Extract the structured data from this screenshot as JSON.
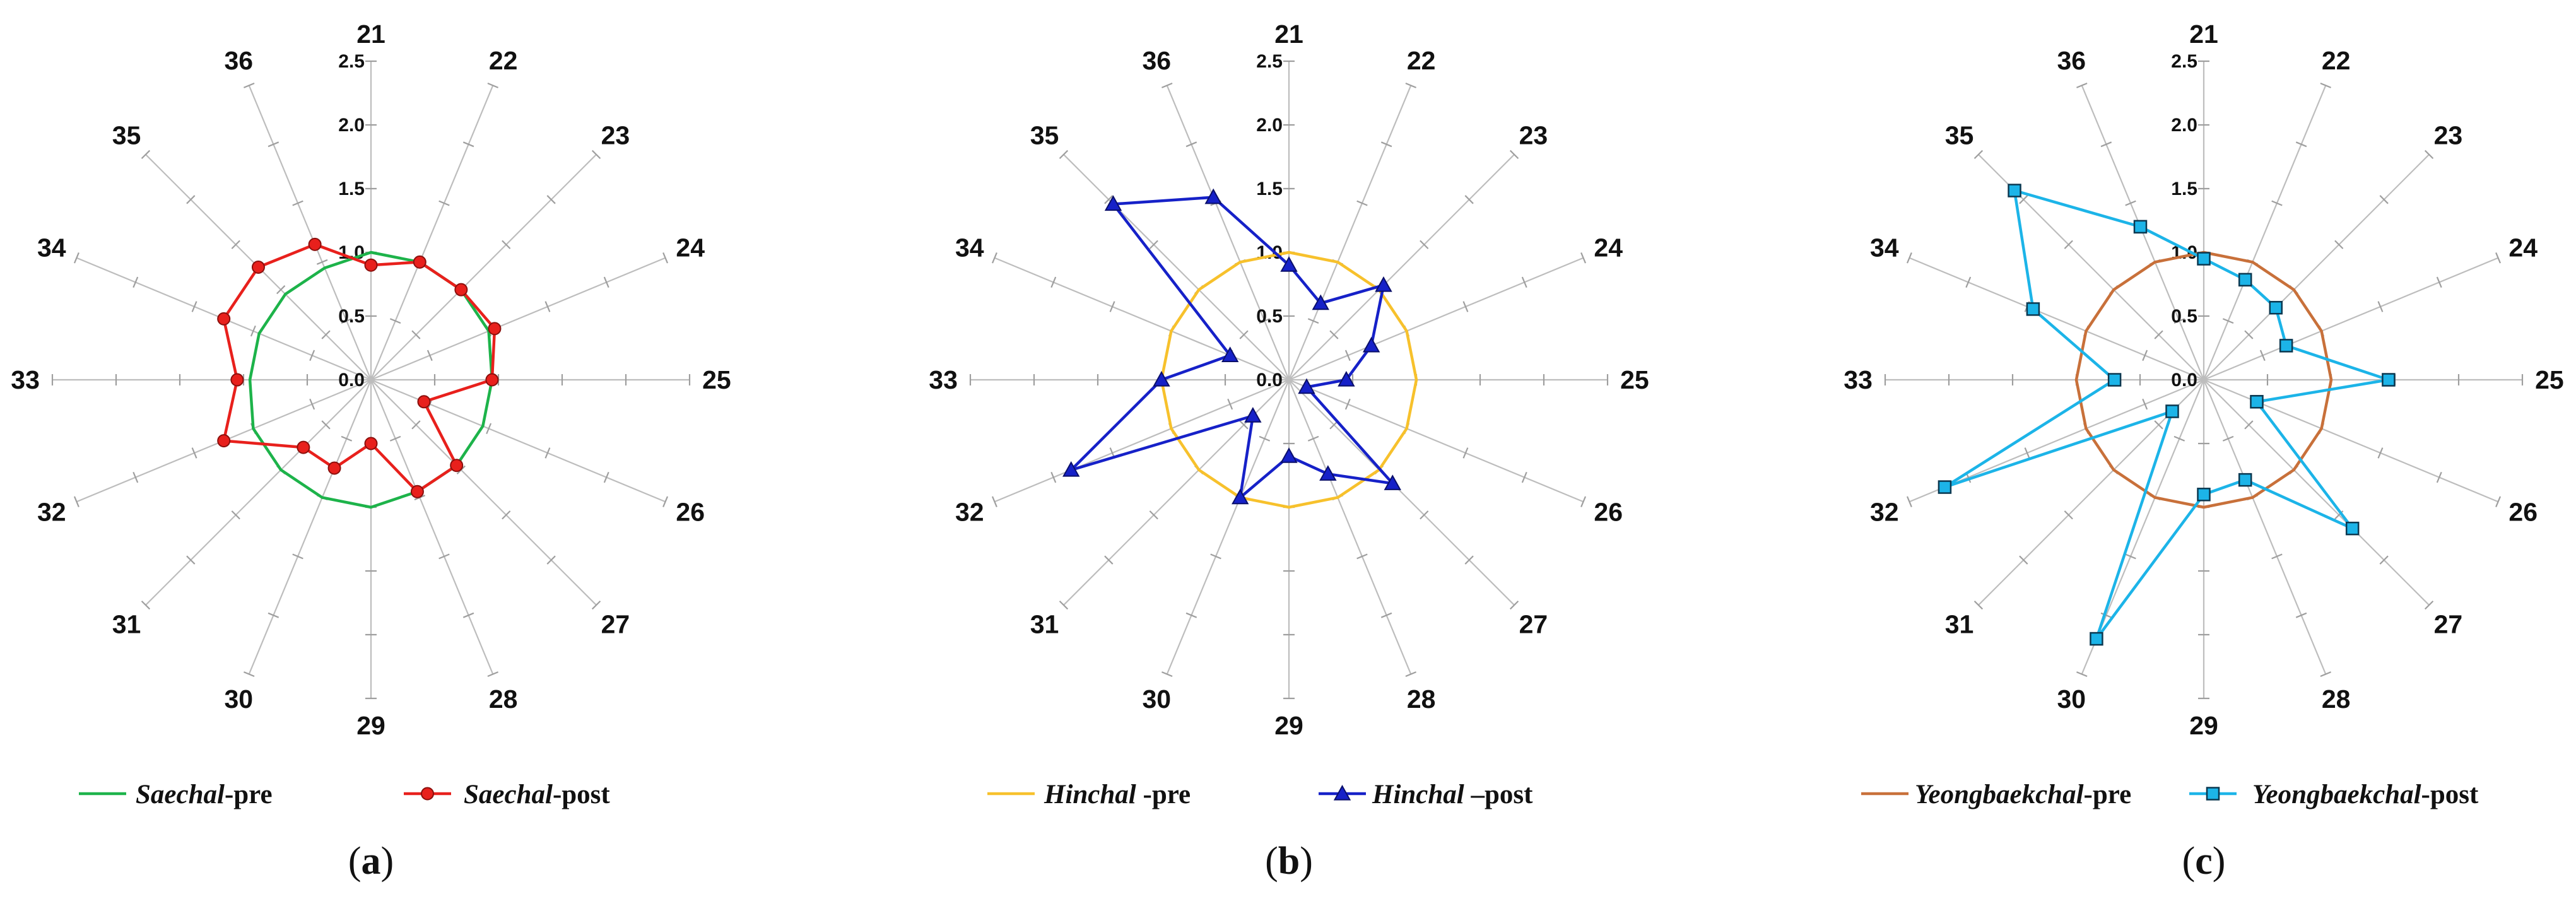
{
  "chart_data": [
    {
      "type": "radar",
      "panel_label": {
        "open": "(",
        "letter": "a",
        "close": ")"
      },
      "categories": [
        "21",
        "22",
        "23",
        "24",
        "25",
        "26",
        "27",
        "28",
        "29",
        "30",
        "31",
        "32",
        "33",
        "34",
        "35",
        "36"
      ],
      "rlim": [
        0,
        2.5
      ],
      "r_ticks": [
        "0.0",
        "0.5",
        "1.0",
        "1.5",
        "2.0",
        "2.5"
      ],
      "grid": false,
      "legend_position": "bottom",
      "series": [
        {
          "name": "Saechal-pre",
          "name_italic": "Saechal",
          "name_suffix": "-pre",
          "color": "#1db34a",
          "marker": "none",
          "values": [
            1.0,
            1.0,
            1.0,
            1.0,
            0.95,
            0.95,
            0.95,
            0.95,
            1.0,
            1.0,
            1.0,
            1.0,
            0.95,
            0.95,
            0.95,
            0.95
          ]
        },
        {
          "name": "Saechal-post",
          "name_italic": "Saechal",
          "name_suffix": "-post",
          "color": "#e8201c",
          "marker": "circle",
          "values": [
            0.9,
            1.0,
            1.0,
            1.05,
            0.95,
            0.45,
            0.95,
            0.95,
            0.5,
            0.75,
            0.75,
            1.25,
            1.05,
            1.25,
            1.25,
            1.15
          ]
        }
      ]
    },
    {
      "type": "radar",
      "panel_label": {
        "open": "(",
        "letter": "b",
        "close": ")"
      },
      "categories": [
        "21",
        "22",
        "23",
        "24",
        "25",
        "26",
        "27",
        "28",
        "29",
        "30",
        "31",
        "32",
        "33",
        "34",
        "35",
        "36"
      ],
      "rlim": [
        0,
        2.5
      ],
      "r_ticks": [
        "0.0",
        "0.5",
        "1.0",
        "1.5",
        "2.0",
        "2.5"
      ],
      "grid": false,
      "legend_position": "bottom",
      "series": [
        {
          "name": "Hinchal -pre",
          "name_italic": "Hinchal",
          "name_suffix": " -pre",
          "color": "#f7c12c",
          "marker": "none",
          "values": [
            1.0,
            1.0,
            1.0,
            1.0,
            1.0,
            1.0,
            1.0,
            1.0,
            1.0,
            1.0,
            1.0,
            1.0,
            1.0,
            1.0,
            1.0,
            1.0
          ]
        },
        {
          "name": "Hinchal –post",
          "name_italic": "Hinchal",
          "name_suffix": " –post",
          "color": "#1621c8",
          "marker": "triangle",
          "values": [
            0.9,
            0.65,
            1.05,
            0.7,
            0.45,
            0.15,
            1.15,
            0.8,
            0.6,
            1.0,
            0.4,
            1.85,
            1.0,
            0.5,
            1.95,
            1.55
          ]
        }
      ]
    },
    {
      "type": "radar",
      "panel_label": {
        "open": "(",
        "letter": "c",
        "close": ")"
      },
      "categories": [
        "21",
        "22",
        "23",
        "24",
        "25",
        "26",
        "27",
        "28",
        "29",
        "30",
        "31",
        "32",
        "33",
        "34",
        "35",
        "36"
      ],
      "rlim": [
        0,
        2.5
      ],
      "r_ticks": [
        "0.0",
        "0.5",
        "1.0",
        "1.5",
        "2.0",
        "2.5"
      ],
      "grid": false,
      "legend_position": "bottom",
      "series": [
        {
          "name": "Yeongbaekchal-pre",
          "name_italic": "Yeongbaekchal",
          "name_suffix": "-pre",
          "color": "#c8703a",
          "marker": "none",
          "values": [
            1.0,
            1.0,
            1.0,
            1.0,
            1.0,
            1.0,
            1.0,
            1.0,
            1.0,
            1.0,
            1.0,
            1.0,
            1.0,
            1.0,
            1.0,
            1.0
          ]
        },
        {
          "name": "Yeongbaekchal-post",
          "name_italic": "Yeongbaekchal",
          "name_suffix": "-post",
          "color": "#1cb4e8",
          "marker": "square",
          "values": [
            0.95,
            0.85,
            0.8,
            0.7,
            1.45,
            0.45,
            1.65,
            0.85,
            0.9,
            2.2,
            0.35,
            2.2,
            0.7,
            1.45,
            2.1,
            1.3
          ]
        }
      ]
    }
  ]
}
